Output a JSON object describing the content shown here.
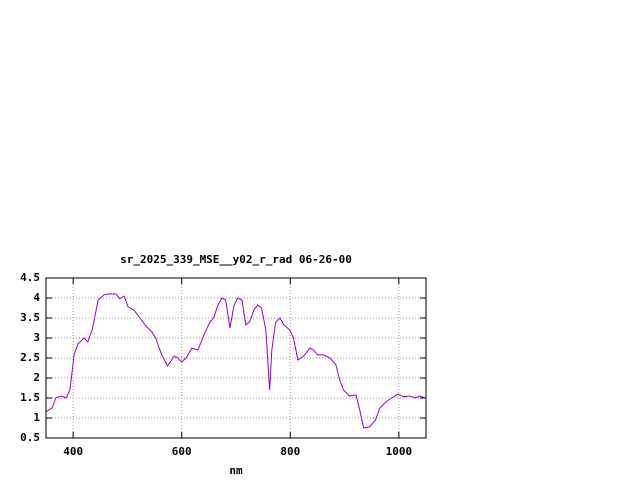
{
  "chart_data": {
    "type": "line",
    "title": "sr_2025_339_MSE__y02_r_rad 06-26-00",
    "x_label": "nm",
    "x": [
      350,
      361,
      368,
      379,
      387,
      394,
      402,
      409,
      420,
      427,
      435,
      446,
      457,
      464,
      479,
      486,
      494,
      501,
      512,
      523,
      534,
      545,
      552,
      563,
      574,
      586,
      593,
      600,
      608,
      619,
      630,
      641,
      652,
      659,
      666,
      674,
      681,
      689,
      696,
      703,
      711,
      718,
      725,
      733,
      740,
      747,
      755,
      762,
      766,
      773,
      781,
      788,
      799,
      806,
      814,
      825,
      836,
      843,
      850,
      861,
      873,
      884,
      891,
      898,
      909,
      921,
      928,
      935,
      946,
      957,
      965,
      976,
      987,
      998,
      1009,
      1020,
      1031,
      1038,
      1050
    ],
    "series": [
      {
        "name": "sr_2025_339_MSE__y02_r_rad",
        "color": "#9400d3",
        "values": [
          1.15,
          1.25,
          1.5,
          1.55,
          1.5,
          1.7,
          2.6,
          2.85,
          3.0,
          2.9,
          3.2,
          3.95,
          4.08,
          4.1,
          4.1,
          3.98,
          4.05,
          3.78,
          3.7,
          3.5,
          3.3,
          3.15,
          3.0,
          2.58,
          2.3,
          2.55,
          2.5,
          2.4,
          2.5,
          2.75,
          2.7,
          3.08,
          3.4,
          3.5,
          3.8,
          4.0,
          3.95,
          3.25,
          3.8,
          4.0,
          3.95,
          3.33,
          3.4,
          3.7,
          3.83,
          3.75,
          3.2,
          1.7,
          2.7,
          3.4,
          3.5,
          3.33,
          3.2,
          3.0,
          2.45,
          2.55,
          2.75,
          2.7,
          2.58,
          2.58,
          2.5,
          2.33,
          1.95,
          1.7,
          1.55,
          1.58,
          1.2,
          0.75,
          0.78,
          0.95,
          1.25,
          1.4,
          1.5,
          1.6,
          1.53,
          1.55,
          1.5,
          1.55,
          1.5
        ]
      }
    ],
    "xlim": [
      350,
      1050
    ],
    "ylim": [
      0.5,
      4.5
    ],
    "xticks": [
      400,
      600,
      800,
      1000
    ],
    "yticks": [
      0.5,
      1,
      1.5,
      2,
      2.5,
      3,
      3.5,
      4,
      4.5
    ],
    "grid": true
  }
}
